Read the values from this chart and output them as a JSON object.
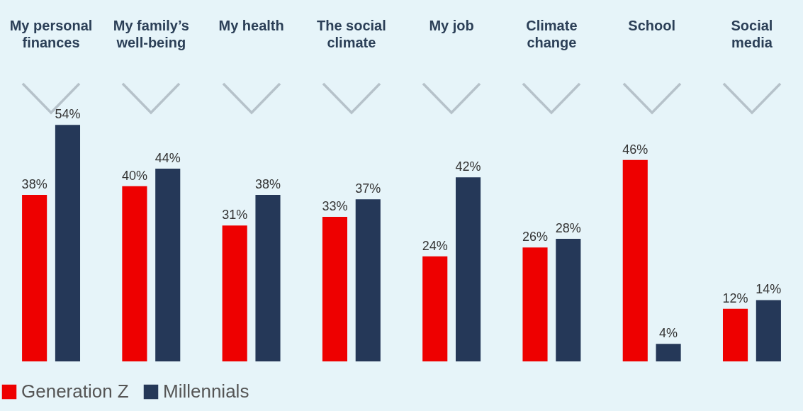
{
  "chart_data": {
    "type": "bar",
    "categories": [
      "My personal finances",
      "My family’s well-being",
      "My health",
      "The social climate",
      "My job",
      "Climate change",
      "School",
      "Social media"
    ],
    "series": [
      {
        "name": "Generation Z",
        "color": "#ee0000",
        "values": [
          38,
          40,
          31,
          33,
          24,
          26,
          46,
          12
        ],
        "value_labels": [
          "38%",
          "40%",
          "31%",
          "33%",
          "24%",
          "26%",
          "46%",
          "12%"
        ]
      },
      {
        "name": "Millennials",
        "color": "#253858",
        "values": [
          54,
          44,
          38,
          37,
          42,
          28,
          4,
          14
        ],
        "value_labels": [
          "54%",
          "44%",
          "38%",
          "37%",
          "42%",
          "28%",
          "4%",
          "14%"
        ]
      }
    ],
    "legend": "bottom",
    "grid": false
  }
}
